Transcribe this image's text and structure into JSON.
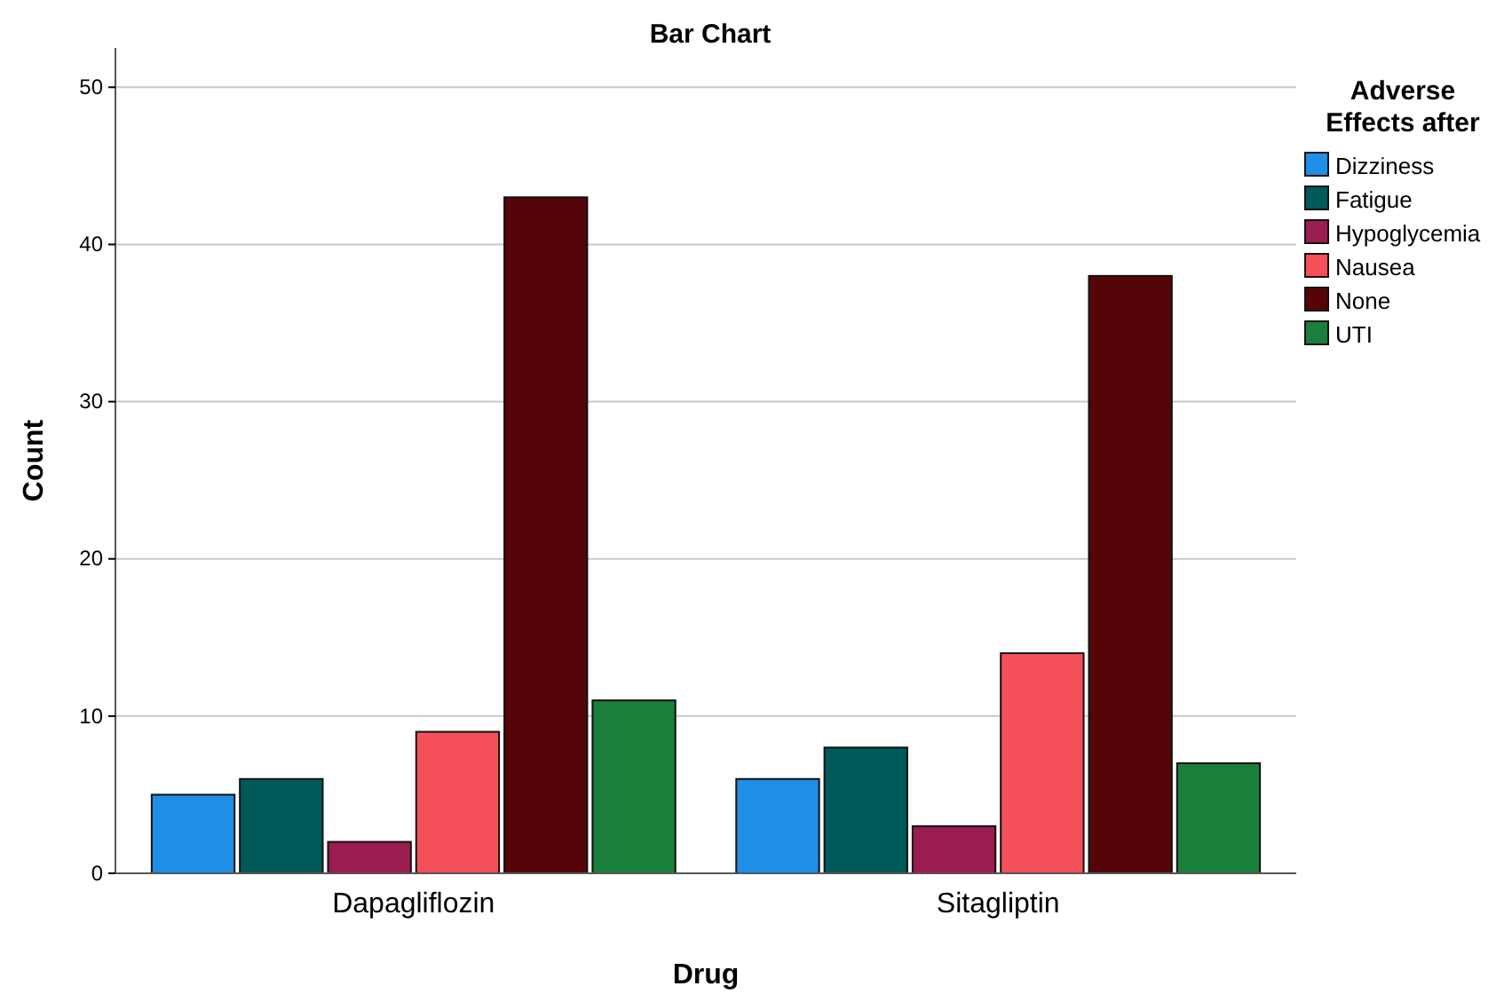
{
  "chart_data": {
    "type": "bar",
    "title": "Bar Chart",
    "xlabel": "Drug",
    "ylabel": "Count",
    "legend_title": "Adverse Effects after",
    "categories": [
      "Dapagliflozin",
      "Sitagliptin"
    ],
    "series": [
      {
        "name": "Dizziness",
        "color": "#1f8ee6",
        "values": [
          5,
          6
        ]
      },
      {
        "name": "Fatigue",
        "color": "#005a5a",
        "values": [
          6,
          8
        ]
      },
      {
        "name": "Hypoglycemia",
        "color": "#9b1c4f",
        "values": [
          2,
          3
        ]
      },
      {
        "name": "Nausea",
        "color": "#f5505a",
        "values": [
          9,
          14
        ]
      },
      {
        "name": "None",
        "color": "#550508",
        "values": [
          43,
          38
        ]
      },
      {
        "name": "UTI",
        "color": "#1a7f3a",
        "values": [
          11,
          7
        ]
      }
    ],
    "ylim": [
      0,
      52.5
    ],
    "yticks": [
      0,
      10,
      20,
      30,
      40,
      50
    ],
    "grid": "y",
    "legend": "top right"
  }
}
